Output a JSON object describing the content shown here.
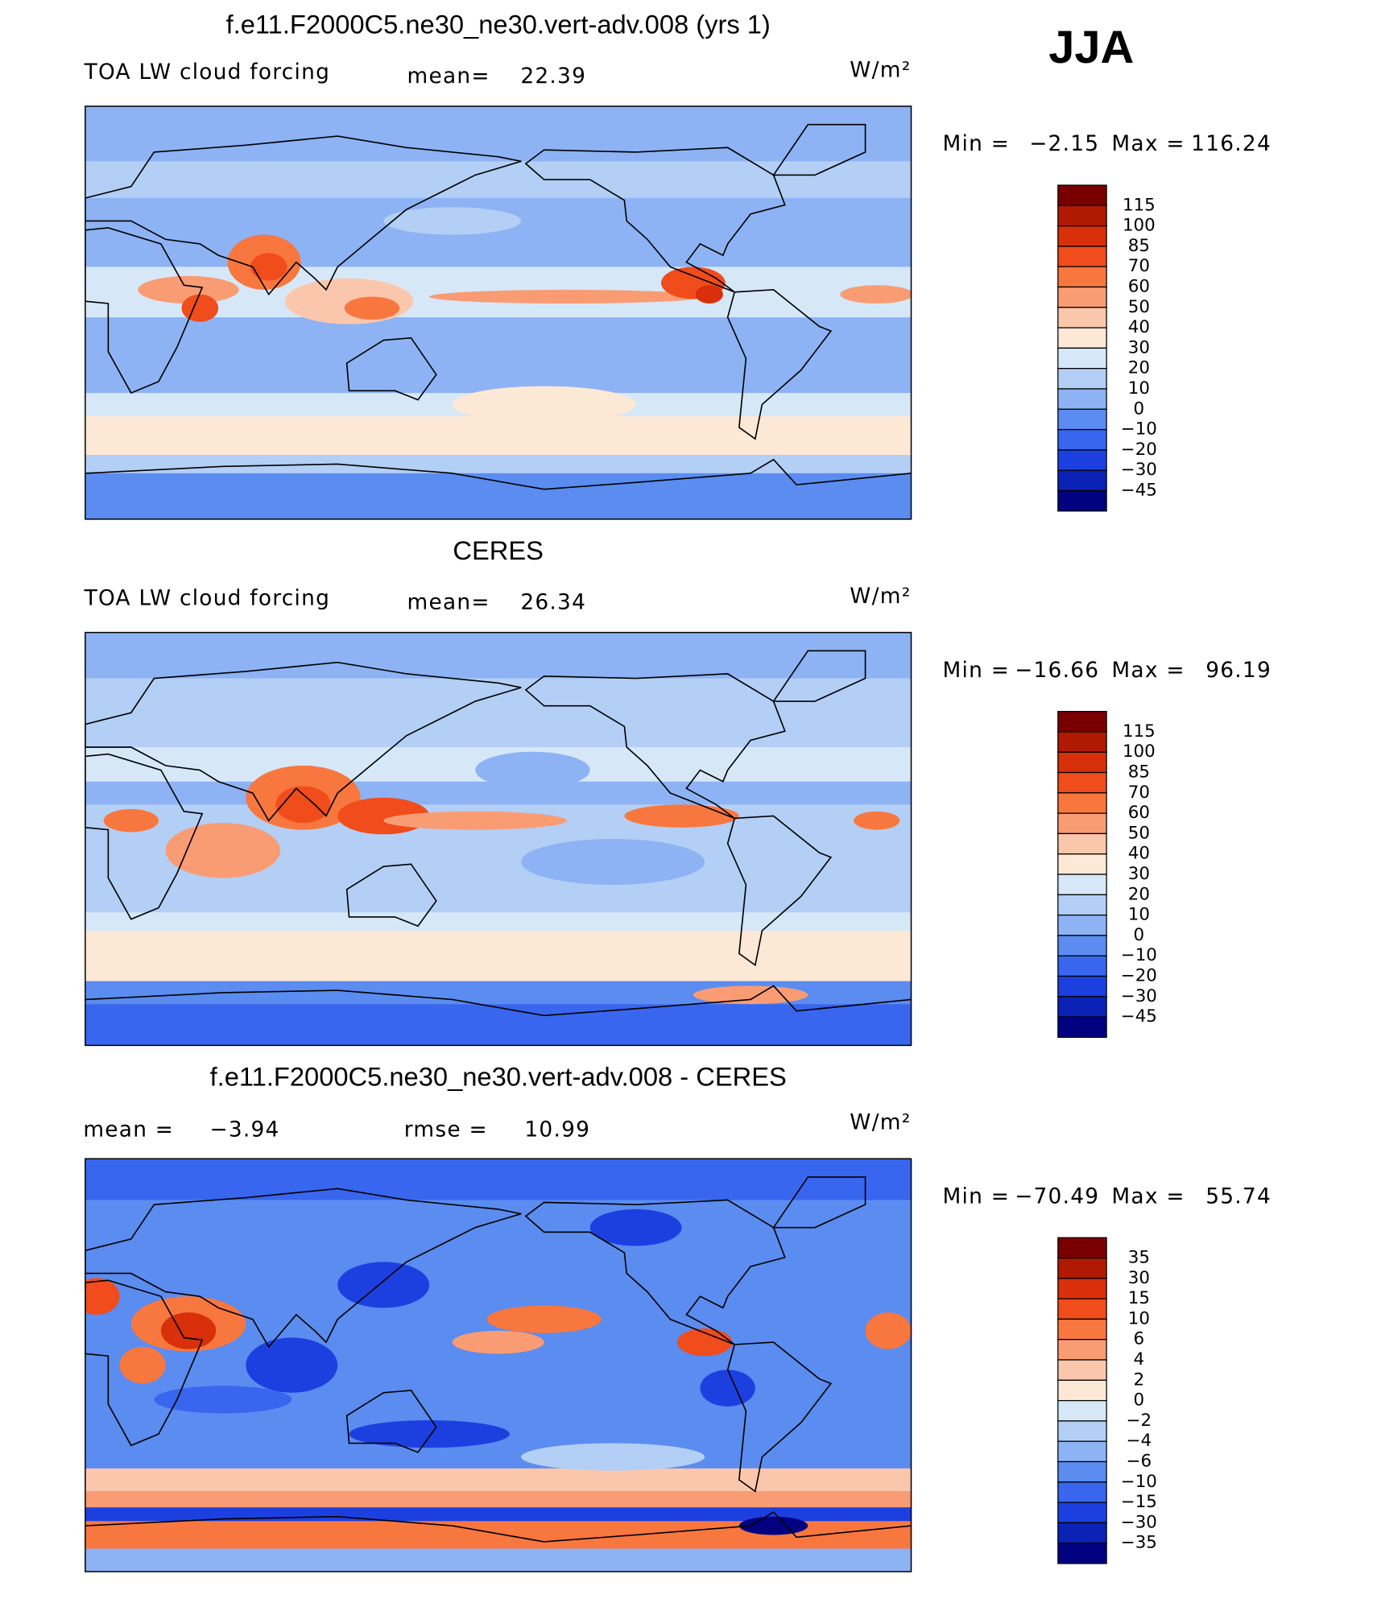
{
  "season": "JJA",
  "colorbar_colors": [
    "#7a0000",
    "#b01a00",
    "#d8300a",
    "#f04c1c",
    "#f8773f",
    "#f99c74",
    "#fbc7ac",
    "#fde8d6",
    "#d6e8f8",
    "#b4cff5",
    "#8db3f4",
    "#5b8cf0",
    "#3866ee",
    "#1c40e0",
    "#0a22b6",
    "#000080"
  ],
  "panels": [
    {
      "title": "f.e11.F2000C5.ne30_ne30.vert-adv.008 (yrs 1)",
      "label": "TOA LW cloud forcing",
      "stats": [
        {
          "label": "mean=",
          "value": "22.39"
        }
      ],
      "units": "W/m²",
      "min_label": "Min =",
      "min": "−2.15",
      "max_label": "Max =",
      "max": "116.24",
      "levels": [
        "115",
        "100",
        "85",
        "70",
        "60",
        "50",
        "40",
        "30",
        "20",
        "10",
        "0",
        "−10",
        "−20",
        "−30",
        "−45"
      ]
    },
    {
      "title": "CERES",
      "label": "TOA LW cloud forcing",
      "stats": [
        {
          "label": "mean=",
          "value": "26.34"
        }
      ],
      "units": "W/m²",
      "min_label": "Min =",
      "min": "−16.66",
      "max_label": "Max =",
      "max": "96.19",
      "levels": [
        "115",
        "100",
        "85",
        "70",
        "60",
        "50",
        "40",
        "30",
        "20",
        "10",
        "0",
        "−10",
        "−20",
        "−30",
        "−45"
      ]
    },
    {
      "title": "f.e11.F2000C5.ne30_ne30.vert-adv.008 - CERES",
      "stats": [
        {
          "label": "mean =",
          "value": "−3.94"
        },
        {
          "label": "rmse =",
          "value": "10.99"
        }
      ],
      "units": "W/m²",
      "min_label": "Min =",
      "min": "−70.49",
      "max_label": "Max =",
      "max": "55.74",
      "levels": [
        "35",
        "30",
        "15",
        "10",
        "6",
        "4",
        "2",
        "0",
        "−2",
        "−4",
        "−6",
        "−10",
        "−15",
        "−30",
        "−35"
      ]
    }
  ]
}
